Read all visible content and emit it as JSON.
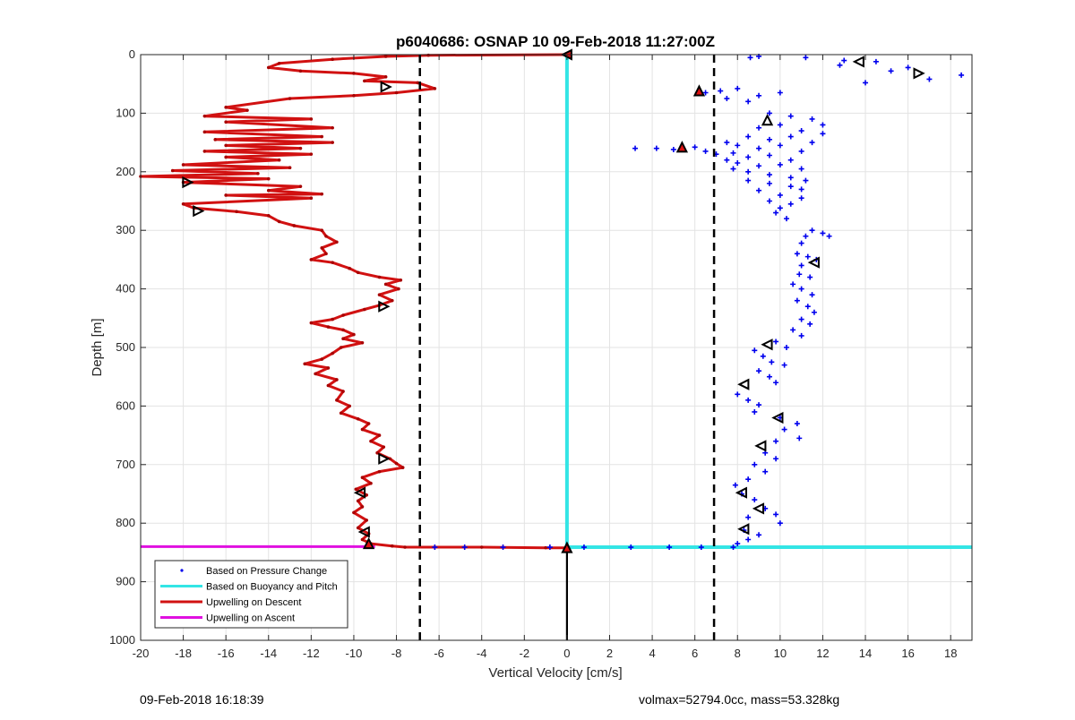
{
  "chart_data": {
    "type": "line",
    "title": "p6040686: OSNAP 10 09-Feb-2018 11:27:00Z",
    "xlabel": "Vertical Velocity [cm/s]",
    "ylabel": "Depth [m]",
    "xlim": [
      -20,
      19
    ],
    "ylim": [
      0,
      1000
    ],
    "y_reversed": true,
    "grid": true,
    "x_ticks": [
      -20,
      -18,
      -16,
      -14,
      -12,
      -10,
      -8,
      -6,
      -4,
      -2,
      0,
      2,
      4,
      6,
      8,
      10,
      12,
      14,
      16,
      18
    ],
    "y_ticks": [
      0,
      100,
      200,
      300,
      400,
      500,
      600,
      700,
      800,
      900,
      1000
    ],
    "legend_position": "bottom-left",
    "colors": {
      "pressure": "#0000ee",
      "buoyancy": "#33e5e5",
      "descent": "#d11111",
      "ascent": "#e010e0",
      "threshold": "#000000"
    },
    "series": [
      {
        "name": "Based on Pressure Change",
        "style": "points",
        "points": [
          [
            6.5,
            65
          ],
          [
            7.2,
            62
          ],
          [
            8.0,
            58
          ],
          [
            9.0,
            70
          ],
          [
            10.0,
            65
          ],
          [
            7.5,
            75
          ],
          [
            8.5,
            80
          ],
          [
            9.5,
            100
          ],
          [
            10.5,
            105
          ],
          [
            11.5,
            110
          ],
          [
            12.0,
            120
          ],
          [
            10.0,
            120
          ],
          [
            9.0,
            125
          ],
          [
            11.0,
            130
          ],
          [
            12.0,
            135
          ],
          [
            8.5,
            140
          ],
          [
            9.5,
            145
          ],
          [
            10.5,
            140
          ],
          [
            11.5,
            150
          ],
          [
            7.5,
            150
          ],
          [
            8.0,
            155
          ],
          [
            9.0,
            160
          ],
          [
            10.0,
            155
          ],
          [
            11.0,
            165
          ],
          [
            3.2,
            160
          ],
          [
            4.2,
            160
          ],
          [
            5.0,
            162
          ],
          [
            6.0,
            158
          ],
          [
            6.5,
            165
          ],
          [
            7.0,
            170
          ],
          [
            7.8,
            168
          ],
          [
            8.5,
            175
          ],
          [
            9.5,
            172
          ],
          [
            10.5,
            180
          ],
          [
            7.5,
            180
          ],
          [
            8.0,
            185
          ],
          [
            9.0,
            190
          ],
          [
            10.0,
            188
          ],
          [
            11.0,
            195
          ],
          [
            7.8,
            195
          ],
          [
            8.5,
            200
          ],
          [
            9.5,
            205
          ],
          [
            10.5,
            210
          ],
          [
            11.2,
            215
          ],
          [
            8.5,
            215
          ],
          [
            9.5,
            220
          ],
          [
            10.5,
            225
          ],
          [
            11.0,
            230
          ],
          [
            9.0,
            232
          ],
          [
            10.0,
            240
          ],
          [
            11.0,
            245
          ],
          [
            9.5,
            250
          ],
          [
            10.5,
            255
          ],
          [
            10.0,
            262
          ],
          [
            9.8,
            270
          ],
          [
            10.3,
            280
          ],
          [
            11.5,
            300
          ],
          [
            12.0,
            305
          ],
          [
            12.3,
            310
          ],
          [
            11.2,
            310
          ],
          [
            11.0,
            322
          ],
          [
            10.8,
            340
          ],
          [
            11.3,
            345
          ],
          [
            11.7,
            350
          ],
          [
            11.0,
            360
          ],
          [
            10.9,
            375
          ],
          [
            11.4,
            380
          ],
          [
            10.6,
            392
          ],
          [
            11.0,
            400
          ],
          [
            11.5,
            410
          ],
          [
            10.8,
            420
          ],
          [
            11.3,
            430
          ],
          [
            11.6,
            440
          ],
          [
            11.0,
            452
          ],
          [
            11.4,
            460
          ],
          [
            10.6,
            470
          ],
          [
            11.0,
            480
          ],
          [
            9.8,
            490
          ],
          [
            10.3,
            500
          ],
          [
            8.8,
            505
          ],
          [
            9.2,
            515
          ],
          [
            9.6,
            525
          ],
          [
            10.2,
            530
          ],
          [
            9.0,
            540
          ],
          [
            9.5,
            550
          ],
          [
            9.8,
            560
          ],
          [
            8.0,
            580
          ],
          [
            8.5,
            590
          ],
          [
            9.0,
            598
          ],
          [
            8.8,
            610
          ],
          [
            10.0,
            620
          ],
          [
            10.8,
            630
          ],
          [
            10.2,
            640
          ],
          [
            10.9,
            655
          ],
          [
            9.8,
            660
          ],
          [
            9.3,
            680
          ],
          [
            9.8,
            690
          ],
          [
            8.8,
            700
          ],
          [
            9.3,
            712
          ],
          [
            8.5,
            725
          ],
          [
            7.9,
            735
          ],
          [
            8.2,
            750
          ],
          [
            8.8,
            760
          ],
          [
            9.3,
            775
          ],
          [
            9.8,
            785
          ],
          [
            8.5,
            790
          ],
          [
            10.0,
            800
          ],
          [
            8.3,
            812
          ],
          [
            9.0,
            820
          ],
          [
            8.5,
            828
          ],
          [
            8.0,
            835
          ],
          [
            7.8,
            841
          ],
          [
            6.3,
            841
          ],
          [
            4.8,
            841
          ],
          [
            3.0,
            841
          ],
          [
            0.8,
            841
          ],
          [
            -0.8,
            841
          ],
          [
            -3.0,
            841
          ],
          [
            -4.8,
            841
          ],
          [
            -6.2,
            841
          ],
          [
            8.6,
            5
          ],
          [
            9.0,
            3
          ],
          [
            11.2,
            5
          ],
          [
            12.8,
            18
          ],
          [
            14.5,
            12
          ],
          [
            16.0,
            22
          ],
          [
            17.0,
            42
          ],
          [
            18.5,
            35
          ],
          [
            14.0,
            48
          ],
          [
            13.0,
            10
          ],
          [
            15.2,
            28
          ]
        ]
      },
      {
        "name": "Based on Buoyancy and Pitch",
        "style": "line",
        "points": [
          [
            0,
            0
          ],
          [
            0,
            841
          ],
          [
            19,
            841
          ]
        ]
      },
      {
        "name": "Upwelling on Descent",
        "style": "line",
        "points": [
          [
            0,
            0
          ],
          [
            -6.5,
            1
          ],
          [
            -8.5,
            3
          ],
          [
            -11.0,
            8
          ],
          [
            -13.5,
            15
          ],
          [
            -14.0,
            22
          ],
          [
            -12.5,
            28
          ],
          [
            -10.0,
            32
          ],
          [
            -8.5,
            38
          ],
          [
            -9.5,
            45
          ],
          [
            -7.0,
            48
          ],
          [
            -6.2,
            58
          ],
          [
            -8.0,
            65
          ],
          [
            -10.0,
            70
          ],
          [
            -13.0,
            75
          ],
          [
            -16.0,
            90
          ],
          [
            -15.0,
            95
          ],
          [
            -17.0,
            105
          ],
          [
            -12.0,
            110
          ],
          [
            -16.0,
            115
          ],
          [
            -11.0,
            125
          ],
          [
            -17.0,
            132
          ],
          [
            -11.5,
            140
          ],
          [
            -16.5,
            145
          ],
          [
            -11.0,
            150
          ],
          [
            -16.0,
            155
          ],
          [
            -12.5,
            160
          ],
          [
            -17.0,
            165
          ],
          [
            -12.0,
            170
          ],
          [
            -16.0,
            175
          ],
          [
            -13.5,
            180
          ],
          [
            -18.0,
            188
          ],
          [
            -13.0,
            193
          ],
          [
            -18.5,
            198
          ],
          [
            -14.5,
            203
          ],
          [
            -20.0,
            208
          ],
          [
            -14.0,
            212
          ],
          [
            -18.0,
            218
          ],
          [
            -12.5,
            225
          ],
          [
            -14.0,
            232
          ],
          [
            -11.5,
            238
          ],
          [
            -16.0,
            240
          ],
          [
            -12.0,
            245
          ],
          [
            -18.0,
            255
          ],
          [
            -17.5,
            262
          ],
          [
            -15.5,
            268
          ],
          [
            -14.0,
            275
          ],
          [
            -13.5,
            285
          ],
          [
            -12.8,
            292
          ],
          [
            -11.5,
            300
          ],
          [
            -11.3,
            310
          ],
          [
            -10.8,
            320
          ],
          [
            -11.5,
            330
          ],
          [
            -11.3,
            340
          ],
          [
            -12.0,
            350
          ],
          [
            -11.0,
            355
          ],
          [
            -10.2,
            365
          ],
          [
            -9.8,
            372
          ],
          [
            -8.8,
            380
          ],
          [
            -7.8,
            385
          ],
          [
            -8.5,
            392
          ],
          [
            -7.9,
            400
          ],
          [
            -8.8,
            410
          ],
          [
            -8.2,
            420
          ],
          [
            -8.8,
            428
          ],
          [
            -9.5,
            435
          ],
          [
            -10.5,
            445
          ],
          [
            -11.0,
            452
          ],
          [
            -12.0,
            458
          ],
          [
            -11.2,
            465
          ],
          [
            -10.5,
            470
          ],
          [
            -10.0,
            478
          ],
          [
            -10.5,
            485
          ],
          [
            -9.6,
            492
          ],
          [
            -10.6,
            500
          ],
          [
            -11.0,
            510
          ],
          [
            -11.5,
            520
          ],
          [
            -12.3,
            528
          ],
          [
            -11.2,
            535
          ],
          [
            -11.8,
            545
          ],
          [
            -10.8,
            555
          ],
          [
            -11.2,
            565
          ],
          [
            -10.5,
            575
          ],
          [
            -10.8,
            590
          ],
          [
            -10.2,
            600
          ],
          [
            -10.6,
            612
          ],
          [
            -9.8,
            622
          ],
          [
            -9.3,
            630
          ],
          [
            -9.6,
            640
          ],
          [
            -8.8,
            650
          ],
          [
            -9.2,
            660
          ],
          [
            -8.6,
            670
          ],
          [
            -8.9,
            680
          ],
          [
            -8.3,
            690
          ],
          [
            -8.0,
            698
          ],
          [
            -7.7,
            705
          ],
          [
            -8.8,
            712
          ],
          [
            -9.6,
            722
          ],
          [
            -9.2,
            732
          ],
          [
            -9.9,
            742
          ],
          [
            -9.4,
            752
          ],
          [
            -9.8,
            762
          ],
          [
            -9.6,
            772
          ],
          [
            -10.0,
            782
          ],
          [
            -9.4,
            795
          ],
          [
            -9.8,
            808
          ],
          [
            -9.3,
            818
          ],
          [
            -9.6,
            828
          ],
          [
            -9.2,
            835
          ],
          [
            -8.2,
            839
          ],
          [
            -7.6,
            841
          ],
          [
            -4.0,
            841
          ],
          [
            -1.0,
            842
          ],
          [
            0,
            842
          ]
        ]
      },
      {
        "name": "Upwelling on Ascent",
        "style": "line",
        "points": [
          [
            -20,
            840
          ],
          [
            -9.0,
            840
          ]
        ]
      }
    ],
    "threshold_lines": [
      {
        "x": -6.9,
        "style": "dashed"
      },
      {
        "x": 6.9,
        "style": "dashed"
      }
    ],
    "markers": [
      {
        "x": -8.5,
        "y": 55,
        "dir": "right",
        "fill": "none"
      },
      {
        "x": -17.8,
        "y": 218,
        "dir": "right",
        "fill": "none"
      },
      {
        "x": -17.3,
        "y": 267,
        "dir": "right",
        "fill": "none"
      },
      {
        "x": -8.6,
        "y": 430,
        "dir": "right",
        "fill": "none"
      },
      {
        "x": -8.6,
        "y": 690,
        "dir": "right",
        "fill": "none"
      },
      {
        "x": -9.7,
        "y": 748,
        "dir": "left",
        "fill": "none"
      },
      {
        "x": -9.5,
        "y": 815,
        "dir": "left",
        "fill": "none"
      },
      {
        "x": -9.3,
        "y": 835,
        "dir": "up",
        "fill": "red"
      },
      {
        "x": 0,
        "y": 0,
        "dir": "left",
        "fill": "red"
      },
      {
        "x": 0,
        "y": 842,
        "dir": "up",
        "fill": "red"
      },
      {
        "x": 6.2,
        "y": 62,
        "dir": "up",
        "fill": "red"
      },
      {
        "x": 5.4,
        "y": 158,
        "dir": "up",
        "fill": "red"
      },
      {
        "x": 9.4,
        "y": 112,
        "dir": "up",
        "fill": "none"
      },
      {
        "x": 13.7,
        "y": 12,
        "dir": "left",
        "fill": "none"
      },
      {
        "x": 16.5,
        "y": 32,
        "dir": "right",
        "fill": "none"
      },
      {
        "x": 11.6,
        "y": 355,
        "dir": "left",
        "fill": "none"
      },
      {
        "x": 9.4,
        "y": 495,
        "dir": "left",
        "fill": "none"
      },
      {
        "x": 8.3,
        "y": 563,
        "dir": "left",
        "fill": "none"
      },
      {
        "x": 9.9,
        "y": 620,
        "dir": "left",
        "fill": "none"
      },
      {
        "x": 9.1,
        "y": 668,
        "dir": "left",
        "fill": "none"
      },
      {
        "x": 8.2,
        "y": 748,
        "dir": "left",
        "fill": "none"
      },
      {
        "x": 9.0,
        "y": 775,
        "dir": "left",
        "fill": "none"
      },
      {
        "x": 8.3,
        "y": 810,
        "dir": "left",
        "fill": "none"
      }
    ]
  },
  "footer": {
    "timestamp": "09-Feb-2018 16:18:39",
    "vehicle_info": "volmax=52794.0cc, mass=53.328kg"
  }
}
